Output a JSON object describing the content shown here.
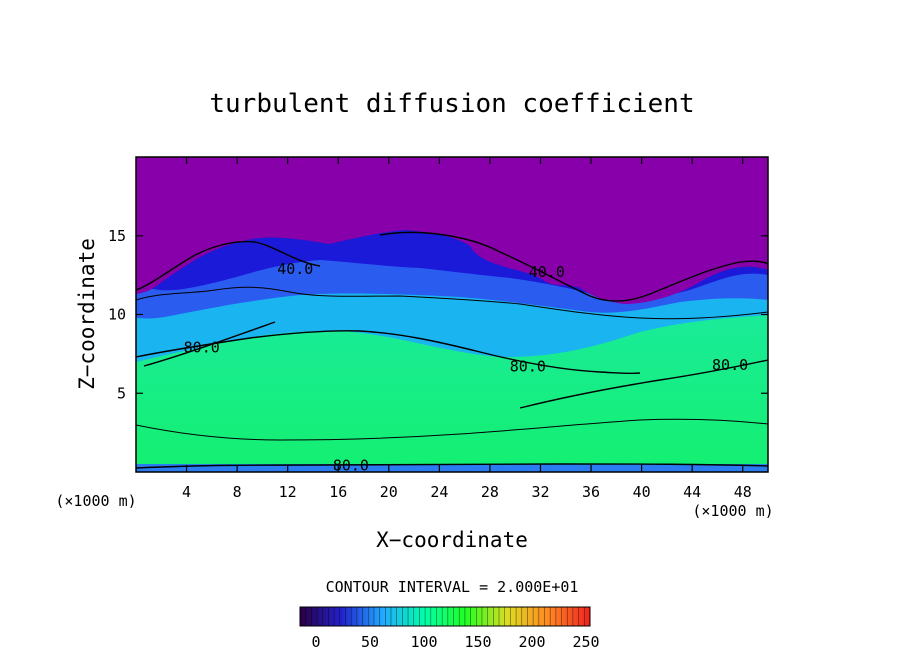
{
  "chart_data": {
    "type": "heatmap",
    "title": "turbulent diffusion coefficient",
    "xlabel": "X−coordinate",
    "ylabel": "Z−coordinate",
    "x_unit_left": "(×1000 m)",
    "x_unit_right": "(×1000 m)",
    "xlim": [
      0,
      50
    ],
    "ylim": [
      0,
      20
    ],
    "x_ticks": [
      4,
      8,
      12,
      16,
      20,
      24,
      28,
      32,
      36,
      40,
      44,
      48
    ],
    "y_ticks": [
      5,
      10,
      15
    ],
    "contour_interval_text": "CONTOUR INTERVAL = 2.000E+01",
    "contour_labels": [
      {
        "text": "40.0",
        "x": 12.6,
        "z": 12.9
      },
      {
        "text": "40.0",
        "x": 32.5,
        "z": 12.7
      },
      {
        "text": "80.0",
        "x": 5.2,
        "z": 7.9
      },
      {
        "text": "80.0",
        "x": 31.0,
        "z": 6.7
      },
      {
        "text": "80.0",
        "x": 47.0,
        "z": 6.8
      },
      {
        "text": "80.0",
        "x": 17.0,
        "z": 0.4
      }
    ],
    "colorbar": {
      "range": [
        0,
        250
      ],
      "tick_labels": [
        "0",
        "50",
        "100",
        "150",
        "200",
        "250"
      ],
      "colors": [
        "#2a0044",
        "#2222cc",
        "#22aaff",
        "#00ffaa",
        "#22ff22",
        "#dddd22",
        "#ff8822",
        "#ee2222"
      ]
    },
    "field_colors": {
      "top": "#8800aa",
      "upper_dark": "#1a1ad8",
      "upper": "#2a5cf0",
      "middle": "#1ab4f0",
      "lower": "#1fe6c2",
      "bottom": "#14f070",
      "surface": "#2a7cf0"
    }
  }
}
